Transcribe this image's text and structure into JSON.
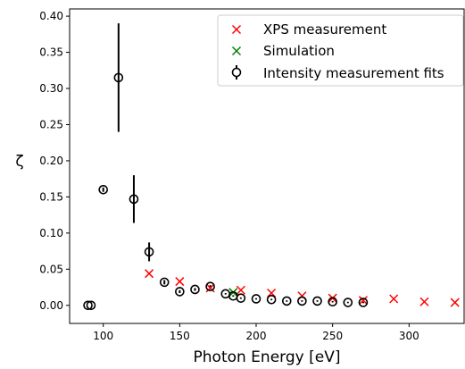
{
  "chart_data": {
    "type": "scatter",
    "title": "",
    "xlabel": "Photon Energy [eV]",
    "ylabel": "ζ",
    "xlim": [
      78,
      336
    ],
    "ylim": [
      -0.025,
      0.41
    ],
    "xticks": [
      100,
      150,
      200,
      250,
      300
    ],
    "yticks": [
      0.0,
      0.05,
      0.1,
      0.15,
      0.2,
      0.25,
      0.3,
      0.35,
      0.4
    ],
    "xtick_labels": [
      "100",
      "150",
      "200",
      "250",
      "300"
    ],
    "ytick_labels": [
      "0.00",
      "0.05",
      "0.10",
      "0.15",
      "0.20",
      "0.25",
      "0.30",
      "0.35",
      "0.40"
    ],
    "grid": false,
    "legend_position": "top-right",
    "legend": [
      "XPS measurement",
      "Simulation",
      "Intensity measurement fits"
    ],
    "series": [
      {
        "name": "XPS measurement",
        "marker": "x",
        "color": "#ff0000",
        "points": [
          {
            "x": 130,
            "y": 0.044
          },
          {
            "x": 150,
            "y": 0.033
          },
          {
            "x": 170,
            "y": 0.024
          },
          {
            "x": 190,
            "y": 0.021
          },
          {
            "x": 210,
            "y": 0.017
          },
          {
            "x": 230,
            "y": 0.013
          },
          {
            "x": 250,
            "y": 0.01
          },
          {
            "x": 270,
            "y": 0.007
          },
          {
            "x": 290,
            "y": 0.009
          },
          {
            "x": 310,
            "y": 0.005
          },
          {
            "x": 330,
            "y": 0.004
          }
        ]
      },
      {
        "name": "Simulation",
        "marker": "x",
        "color": "#008000",
        "points": [
          {
            "x": 185,
            "y": 0.018
          }
        ]
      },
      {
        "name": "Intensity measurement fits",
        "marker": "o-errorbar",
        "color": "#000000",
        "points": [
          {
            "x": 90,
            "y": 0.0,
            "err": 0.0
          },
          {
            "x": 92,
            "y": 0.0,
            "err": 0.0
          },
          {
            "x": 100,
            "y": 0.16,
            "err": 0.003
          },
          {
            "x": 110,
            "y": 0.315,
            "err": 0.075
          },
          {
            "x": 120,
            "y": 0.147,
            "err": 0.033
          },
          {
            "x": 130,
            "y": 0.074,
            "err": 0.013
          },
          {
            "x": 140,
            "y": 0.032,
            "err": 0.003
          },
          {
            "x": 150,
            "y": 0.019,
            "err": 0.002
          },
          {
            "x": 160,
            "y": 0.022,
            "err": 0.002
          },
          {
            "x": 170,
            "y": 0.026,
            "err": 0.002
          },
          {
            "x": 180,
            "y": 0.016,
            "err": 0.001
          },
          {
            "x": 185,
            "y": 0.013,
            "err": 0.001
          },
          {
            "x": 190,
            "y": 0.01,
            "err": 0.001
          },
          {
            "x": 200,
            "y": 0.009,
            "err": 0.001
          },
          {
            "x": 210,
            "y": 0.008,
            "err": 0.001
          },
          {
            "x": 220,
            "y": 0.006,
            "err": 0.001
          },
          {
            "x": 230,
            "y": 0.006,
            "err": 0.001
          },
          {
            "x": 240,
            "y": 0.006,
            "err": 0.001
          },
          {
            "x": 250,
            "y": 0.005,
            "err": 0.001
          },
          {
            "x": 260,
            "y": 0.004,
            "err": 0.001
          },
          {
            "x": 270,
            "y": 0.004,
            "err": 0.001
          }
        ]
      }
    ]
  }
}
